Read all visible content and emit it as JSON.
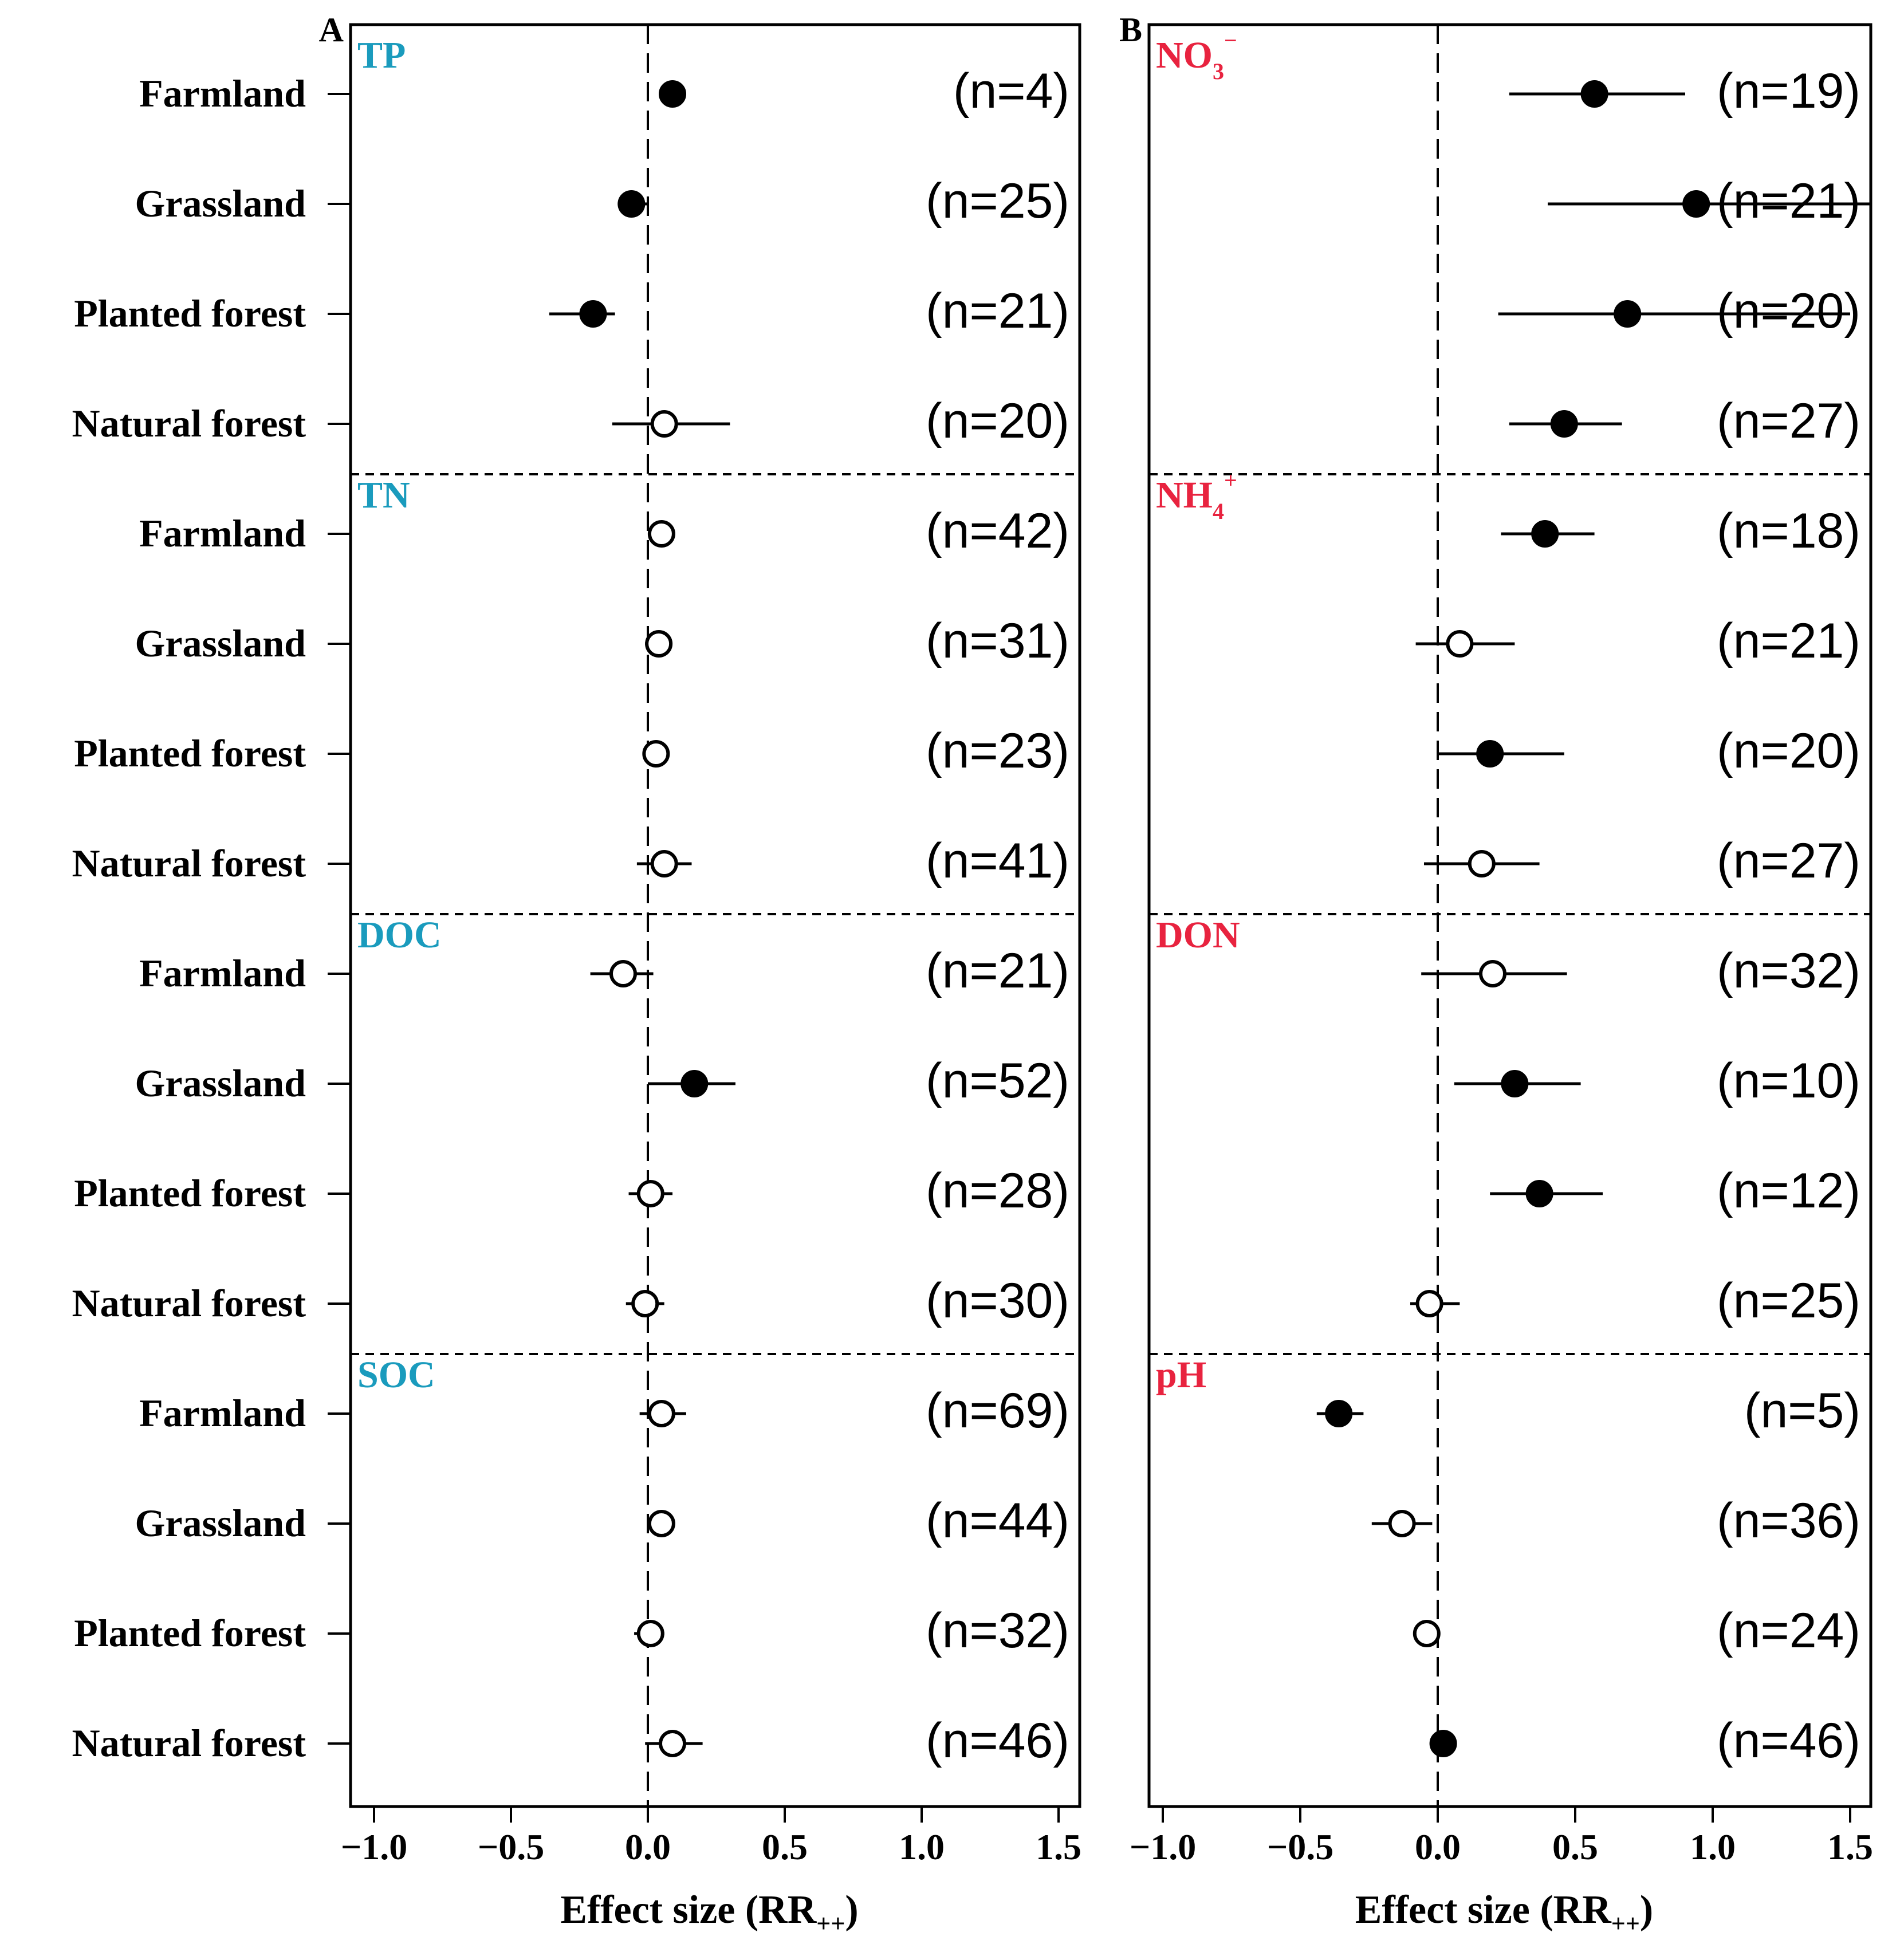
{
  "chart_data": {
    "type": "forest",
    "xlabel_main": "Effect size (RR",
    "xlabel_sub": "++",
    "xlabel_close": ")",
    "xlim": [
      -1.1,
      1.6
    ],
    "xticks": [
      -1.0,
      -0.5,
      0.0,
      0.5,
      1.0,
      1.5
    ],
    "xtick_labels": [
      "−1.0",
      "−0.5",
      "0.0",
      "0.5",
      "1.0",
      "1.5"
    ],
    "y_categories": [
      "Farmland",
      "Grassland",
      "Planted forest",
      "Natural forest"
    ],
    "sig_encoding": "filled = significant, open = not significant",
    "panels": [
      {
        "panel_label": "A",
        "group_color": "#1a9bbd",
        "groups": [
          {
            "label_main": "TP",
            "label_sub": "",
            "label_sup": "",
            "points": [
              {
                "category": "Farmland",
                "mean": 0.09,
                "lo": 0.06,
                "hi": 0.12,
                "n_label": "(n=4)",
                "significant": true
              },
              {
                "category": "Grassland",
                "mean": -0.06,
                "lo": -0.11,
                "hi": 0.0,
                "n_label": "(n=25)",
                "significant": true
              },
              {
                "category": "Planted forest",
                "mean": -0.2,
                "lo": -0.36,
                "hi": -0.12,
                "n_label": "(n=21)",
                "significant": true
              },
              {
                "category": "Natural forest",
                "mean": 0.06,
                "lo": -0.13,
                "hi": 0.3,
                "n_label": "(n=20)",
                "significant": false
              }
            ]
          },
          {
            "label_main": "TN",
            "label_sub": "",
            "label_sup": "",
            "points": [
              {
                "category": "Farmland",
                "mean": 0.05,
                "lo": 0.0,
                "hi": 0.09,
                "n_label": "(n=42)",
                "significant": false
              },
              {
                "category": "Grassland",
                "mean": 0.04,
                "lo": -0.01,
                "hi": 0.08,
                "n_label": "(n=31)",
                "significant": false
              },
              {
                "category": "Planted forest",
                "mean": 0.03,
                "lo": -0.01,
                "hi": 0.07,
                "n_label": "(n=23)",
                "significant": false
              },
              {
                "category": "Natural forest",
                "mean": 0.06,
                "lo": -0.04,
                "hi": 0.16,
                "n_label": "(n=41)",
                "significant": false
              }
            ]
          },
          {
            "label_main": "DOC",
            "label_sub": "",
            "label_sup": "",
            "points": [
              {
                "category": "Farmland",
                "mean": -0.09,
                "lo": -0.21,
                "hi": 0.02,
                "n_label": "(n=21)",
                "significant": false
              },
              {
                "category": "Grassland",
                "mean": 0.17,
                "lo": 0.0,
                "hi": 0.32,
                "n_label": "(n=52)",
                "significant": true
              },
              {
                "category": "Planted forest",
                "mean": 0.01,
                "lo": -0.07,
                "hi": 0.09,
                "n_label": "(n=28)",
                "significant": false
              },
              {
                "category": "Natural forest",
                "mean": -0.01,
                "lo": -0.08,
                "hi": 0.06,
                "n_label": "(n=30)",
                "significant": false
              }
            ]
          },
          {
            "label_main": "SOC",
            "label_sub": "",
            "label_sup": "",
            "points": [
              {
                "category": "Farmland",
                "mean": 0.05,
                "lo": -0.03,
                "hi": 0.14,
                "n_label": "(n=69)",
                "significant": false
              },
              {
                "category": "Grassland",
                "mean": 0.05,
                "lo": 0.01,
                "hi": 0.09,
                "n_label": "(n=44)",
                "significant": false
              },
              {
                "category": "Planted forest",
                "mean": 0.01,
                "lo": -0.05,
                "hi": 0.06,
                "n_label": "(n=32)",
                "significant": false
              },
              {
                "category": "Natural forest",
                "mean": 0.09,
                "lo": -0.01,
                "hi": 0.2,
                "n_label": "(n=46)",
                "significant": false
              }
            ]
          }
        ]
      },
      {
        "panel_label": "B",
        "group_color": "#e8233f",
        "groups": [
          {
            "label_main": "NO",
            "label_sub": "3",
            "label_sup": "−",
            "points": [
              {
                "category": "Farmland",
                "mean": 0.57,
                "lo": 0.26,
                "hi": 0.9,
                "n_label": "(n=19)",
                "significant": true
              },
              {
                "category": "Grassland",
                "mean": 0.94,
                "lo": 0.4,
                "hi": 1.6,
                "n_label": "(n=21)",
                "significant": true
              },
              {
                "category": "Planted forest",
                "mean": 0.69,
                "lo": 0.22,
                "hi": 1.5,
                "n_label": "(n=20)",
                "significant": true
              },
              {
                "category": "Natural forest",
                "mean": 0.46,
                "lo": 0.26,
                "hi": 0.67,
                "n_label": "(n=27)",
                "significant": true
              }
            ]
          },
          {
            "label_main": "NH",
            "label_sub": "4",
            "label_sup": "+",
            "points": [
              {
                "category": "Farmland",
                "mean": 0.39,
                "lo": 0.23,
                "hi": 0.57,
                "n_label": "(n=18)",
                "significant": true
              },
              {
                "category": "Grassland",
                "mean": 0.08,
                "lo": -0.08,
                "hi": 0.28,
                "n_label": "(n=21)",
                "significant": false
              },
              {
                "category": "Planted forest",
                "mean": 0.19,
                "lo": 0.0,
                "hi": 0.46,
                "n_label": "(n=20)",
                "significant": true
              },
              {
                "category": "Natural forest",
                "mean": 0.16,
                "lo": -0.05,
                "hi": 0.37,
                "n_label": "(n=27)",
                "significant": false
              }
            ]
          },
          {
            "label_main": "DON",
            "label_sub": "",
            "label_sup": "",
            "points": [
              {
                "category": "Farmland",
                "mean": 0.2,
                "lo": -0.06,
                "hi": 0.47,
                "n_label": "(n=32)",
                "significant": false
              },
              {
                "category": "Grassland",
                "mean": 0.28,
                "lo": 0.06,
                "hi": 0.52,
                "n_label": "(n=10)",
                "significant": true
              },
              {
                "category": "Planted forest",
                "mean": 0.37,
                "lo": 0.19,
                "hi": 0.6,
                "n_label": "(n=12)",
                "significant": true
              },
              {
                "category": "Natural forest",
                "mean": -0.03,
                "lo": -0.1,
                "hi": 0.08,
                "n_label": "(n=25)",
                "significant": false
              }
            ]
          },
          {
            "label_main": "pH",
            "label_sub": "",
            "label_sup": "",
            "points": [
              {
                "category": "Farmland",
                "mean": -0.36,
                "lo": -0.44,
                "hi": -0.27,
                "n_label": "(n=5)",
                "significant": true
              },
              {
                "category": "Grassland",
                "mean": -0.13,
                "lo": -0.24,
                "hi": -0.02,
                "n_label": "(n=36)",
                "significant": false
              },
              {
                "category": "Planted forest",
                "mean": -0.04,
                "lo": -0.06,
                "hi": -0.02,
                "n_label": "(n=24)",
                "significant": false
              },
              {
                "category": "Natural forest",
                "mean": 0.02,
                "lo": 0.0,
                "hi": 0.04,
                "n_label": "(n=46)",
                "significant": true
              }
            ]
          }
        ]
      }
    ]
  }
}
